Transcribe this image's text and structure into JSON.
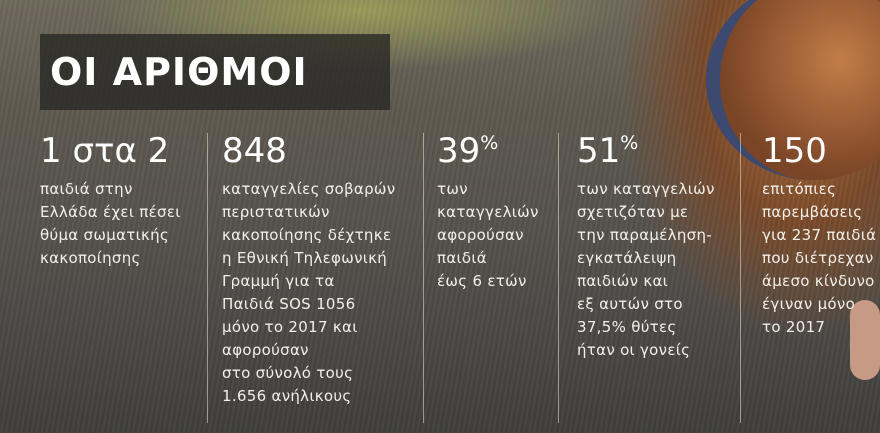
{
  "title": "ΟΙ ΑΡΙΘΜΟΙ",
  "stats": [
    {
      "number": "1 στα 2",
      "lines": [
        "παιδιά στην",
        "Ελλάδα έχει πέσει",
        "θύμα σωματικής",
        "κακοποίησης"
      ]
    },
    {
      "number": "848",
      "lines": [
        "καταγγελίες σοβαρών",
        "περιστατικών",
        "κακοποίησης δέχτηκε",
        "η Εθνική Τηλεφωνική",
        "Γραμμή για τα",
        "Παιδιά SOS 1056",
        "μόνο το 2017 και",
        "αφορούσαν",
        "στο σύνολό τους",
        "1.656 ανήλικους"
      ]
    },
    {
      "number": "39",
      "suffix": "%",
      "lines": [
        "των",
        "καταγγελιών",
        "αφορούσαν",
        "παιδιά",
        "έως 6 ετών"
      ]
    },
    {
      "number": "51",
      "suffix": "%",
      "lines": [
        "των καταγγελιών",
        "σχετιζόταν με",
        "την παραμέληση-",
        "εγκατάλειψη",
        "παιδιών και",
        "εξ αυτών στο",
        "37,5% θύτες",
        "ήταν οι γονείς"
      ]
    },
    {
      "number": "150",
      "lines": [
        "επιτόπιες",
        "παρεμβάσεις",
        "για 237 παιδιά",
        "που διέτρεχαν",
        "άμεσο κίνδυνο",
        "έγιναν μόνο",
        "το 2017"
      ]
    }
  ]
}
